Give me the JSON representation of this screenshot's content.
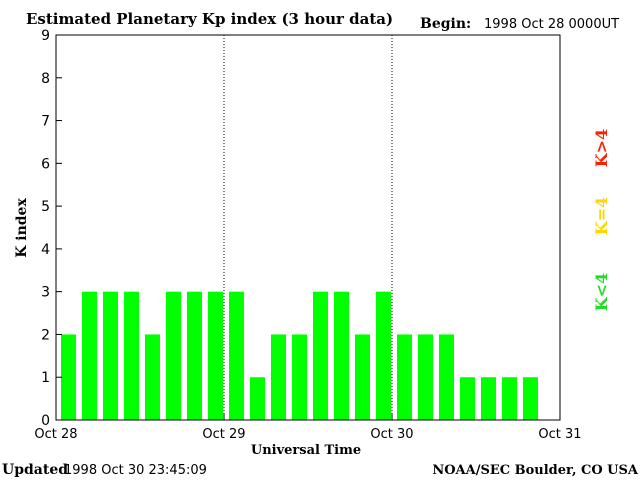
{
  "chart_data": {
    "type": "bar",
    "title": "Estimated Planetary Kp index (3 hour data)",
    "begin_label": "Begin:",
    "begin_value": "1998 Oct 28 0000UT",
    "xlabel": "Universal Time",
    "ylabel": "K index",
    "ylim": [
      0,
      9
    ],
    "yticks": [
      "0",
      "1",
      "2",
      "3",
      "4",
      "5",
      "6",
      "7",
      "8",
      "9"
    ],
    "xticks": [
      "Oct 28",
      "Oct 29",
      "Oct 30",
      "Oct 31"
    ],
    "bars_per_day": 8,
    "days": 3,
    "values": [
      2,
      3,
      3,
      3,
      2,
      3,
      3,
      3,
      3,
      1,
      2,
      2,
      3,
      3,
      2,
      3,
      2,
      2,
      2,
      1,
      1,
      1,
      1
    ],
    "grid": "dotted vertical lines at day boundaries",
    "legend": {
      "placement": "right",
      "items": [
        {
          "label": "K>4",
          "color": "#ff2000"
        },
        {
          "label": "K=4",
          "color": "#ffd700"
        },
        {
          "label": "K<4",
          "color": "#22dd22"
        }
      ]
    },
    "bar_color": "#00ff00"
  },
  "footer": {
    "updated_label": "Updated",
    "updated_value": "1998 Oct 30 23:45:09",
    "credit": "NOAA/SEC Boulder, CO USA"
  }
}
